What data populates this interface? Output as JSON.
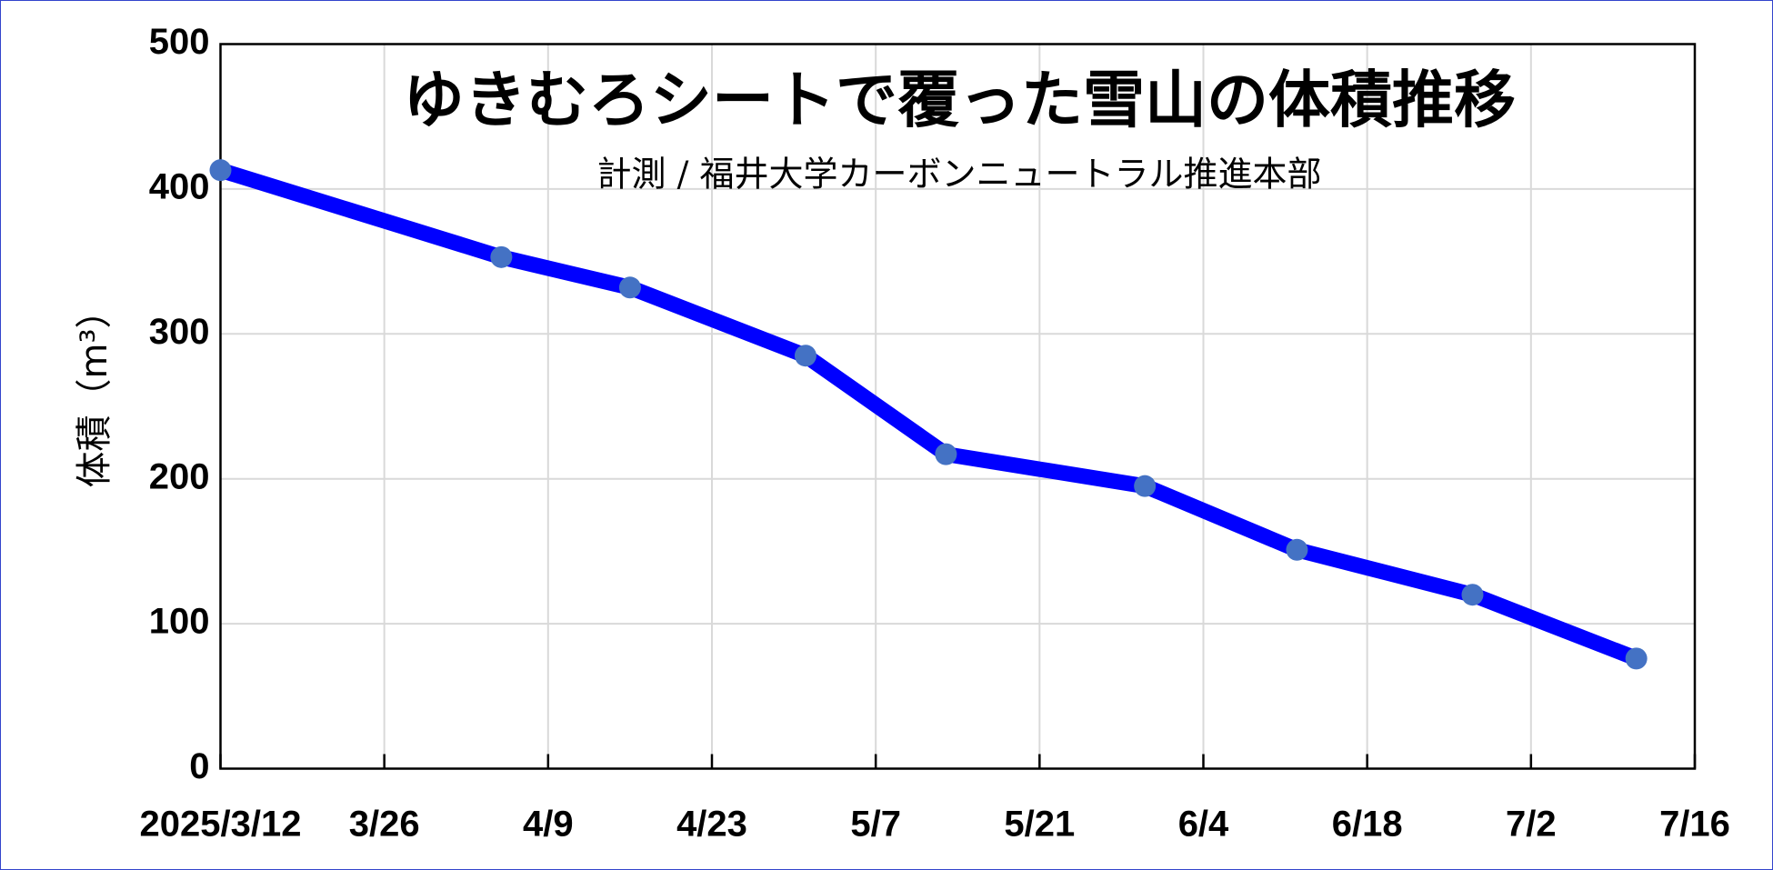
{
  "chart_data": {
    "type": "line",
    "title": "ゆきむろシートで覆った雪山の体積推移",
    "subtitle": "計測 / 福井大学カーボンニュートラル推進本部",
    "y_label": "体積（m³）",
    "x": [
      "2025-03-12",
      "2025-04-05",
      "2025-04-16",
      "2025-05-01",
      "2025-05-13",
      "2025-05-30",
      "2025-06-12",
      "2025-06-27",
      "2025-07-11"
    ],
    "series": [
      {
        "name": "体積",
        "color": "#0000ff",
        "marker_color": "#4472c4",
        "values": [
          413,
          353,
          332,
          285,
          217,
          195,
          151,
          120,
          76
        ]
      }
    ],
    "xlim": [
      "2025-03-12",
      "2025-07-16"
    ],
    "xticks": [
      {
        "value": "2025-03-12",
        "label": "2025/3/12"
      },
      {
        "value": "2025-03-26",
        "label": "3/26"
      },
      {
        "value": "2025-04-09",
        "label": "4/9"
      },
      {
        "value": "2025-04-23",
        "label": "4/23"
      },
      {
        "value": "2025-05-07",
        "label": "5/7"
      },
      {
        "value": "2025-05-21",
        "label": "5/21"
      },
      {
        "value": "2025-06-04",
        "label": "6/4"
      },
      {
        "value": "2025-06-18",
        "label": "6/18"
      },
      {
        "value": "2025-07-02",
        "label": "7/2"
      },
      {
        "value": "2025-07-16",
        "label": "7/16"
      }
    ],
    "ylim": [
      0,
      500
    ],
    "yticks": [
      0,
      100,
      200,
      300,
      400,
      500
    ],
    "grid": true
  }
}
